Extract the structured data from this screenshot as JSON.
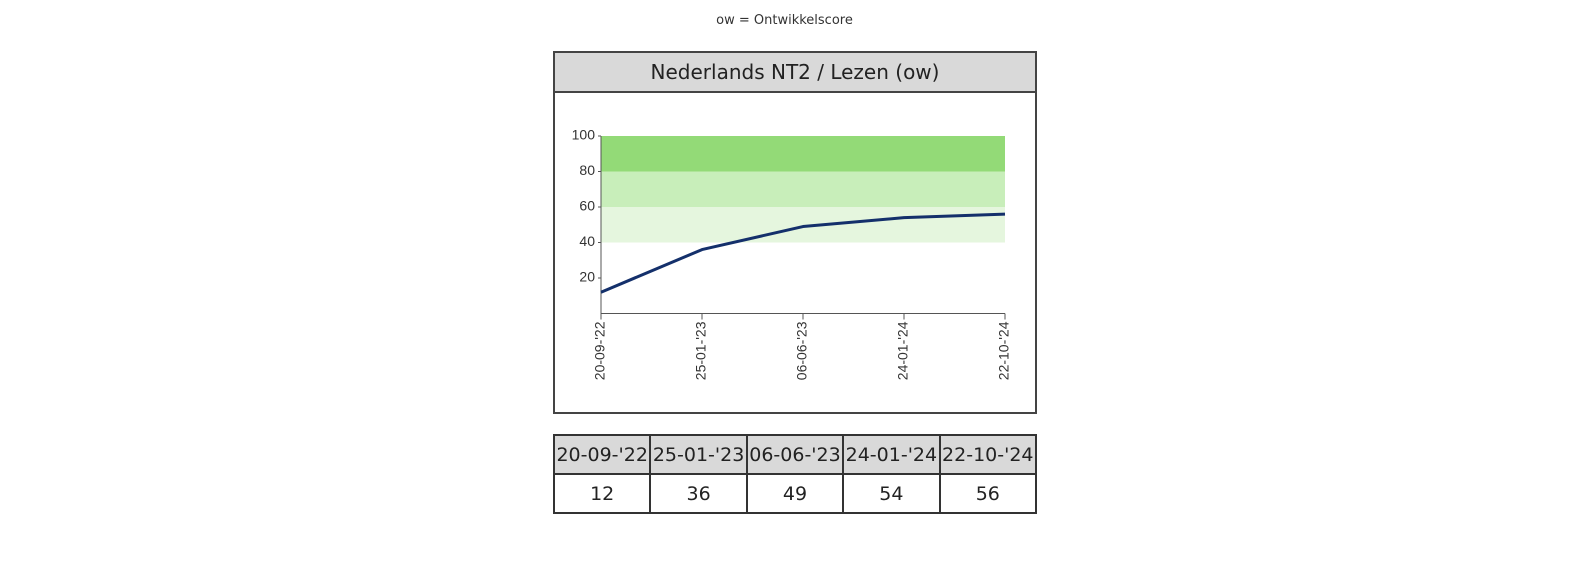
{
  "note": "ow = Ontwikkelscore",
  "chart_data": {
    "type": "line",
    "title": "Nederlands NT2 / Lezen (ow)",
    "categories": [
      "20-09-'22",
      "25-01-'23",
      "06-06-'23",
      "24-01-'24",
      "22-10-'24"
    ],
    "values": [
      12,
      36,
      49,
      54,
      56
    ],
    "color": "#14306b",
    "ylim": [
      0,
      100
    ],
    "yticks": [
      20,
      40,
      60,
      80,
      100
    ],
    "bands": [
      {
        "from": 80,
        "to": 100,
        "color": "#93da77"
      },
      {
        "from": 60,
        "to": 80,
        "color": "#c8eeba"
      },
      {
        "from": 40,
        "to": 60,
        "color": "#e5f6de"
      }
    ]
  }
}
